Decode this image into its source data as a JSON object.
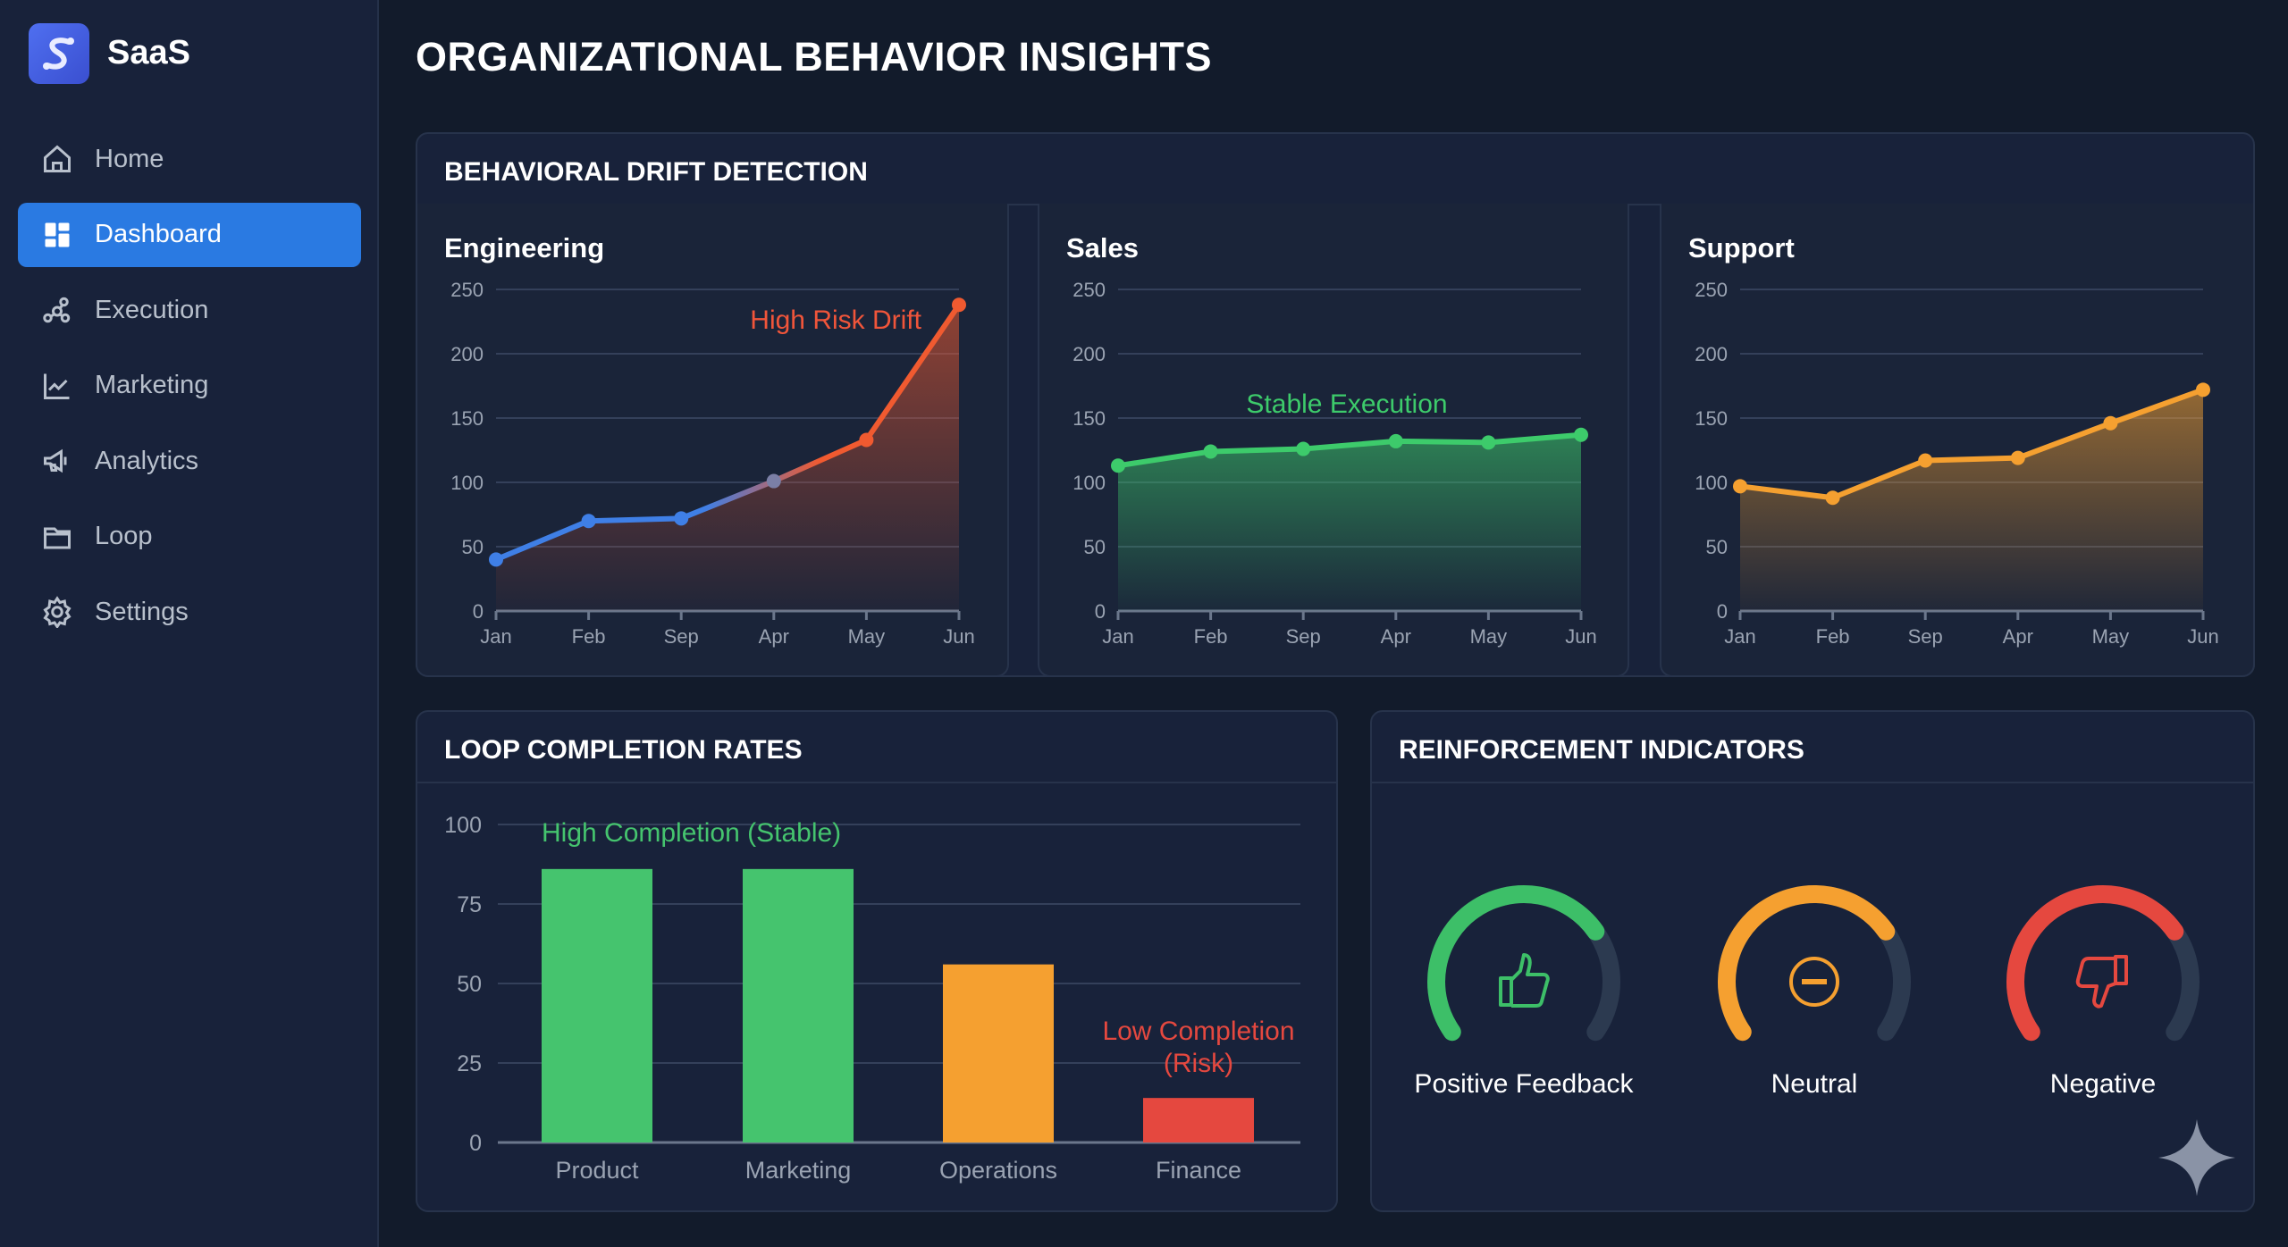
{
  "app": {
    "name": "SaaS",
    "logo_icon": "s-logo-icon"
  },
  "sidebar": {
    "items": [
      {
        "label": "Home",
        "icon": "home-icon",
        "active": false
      },
      {
        "label": "Dashboard",
        "icon": "dashboard-icon",
        "active": true
      },
      {
        "label": "Execution",
        "icon": "nodes-icon",
        "active": false
      },
      {
        "label": "Marketing",
        "icon": "line-chart-icon",
        "active": false
      },
      {
        "label": "Analytics",
        "icon": "megaphone-icon",
        "active": false
      },
      {
        "label": "Loop",
        "icon": "folder-icon",
        "active": false
      },
      {
        "label": "Settings",
        "icon": "gear-icon",
        "active": false
      }
    ]
  },
  "page": {
    "title": "ORGANIZATIONAL BEHAVIOR INSIGHTS"
  },
  "drift": {
    "title": "BEHAVIORAL DRIFT DETECTION"
  },
  "loop": {
    "title": "LOOP COMPLETION RATES"
  },
  "reinforcement": {
    "title": "REINFORCEMENT INDICATORS",
    "gauges": [
      {
        "label": "Positive Feedback",
        "icon": "thumbs-up-icon",
        "color": "#3dbf68",
        "level": 0.72
      },
      {
        "label": "Neutral",
        "icon": "minus-circle-icon",
        "color": "#f5a030",
        "level": 0.72
      },
      {
        "label": "Negative",
        "icon": "thumbs-down-icon",
        "color": "#e5483f",
        "level": 0.72
      }
    ]
  },
  "chart_data": [
    {
      "type": "area",
      "title": "Engineering",
      "categories": [
        "Jan",
        "Feb",
        "Sep",
        "Apr",
        "May",
        "Jun"
      ],
      "values": [
        40,
        70,
        72,
        101,
        133,
        238
      ],
      "ylim": [
        0,
        250
      ],
      "yticks": [
        0,
        50,
        100,
        150,
        200,
        250
      ],
      "grid": true,
      "colors": {
        "start": "#3f7fe6",
        "end": "#f05a30"
      },
      "annotation": {
        "text": "High Risk Drift",
        "color": "#f0553a"
      }
    },
    {
      "type": "area",
      "title": "Sales",
      "categories": [
        "Jan",
        "Feb",
        "Sep",
        "Apr",
        "May",
        "Jun"
      ],
      "values": [
        113,
        124,
        126,
        132,
        131,
        137
      ],
      "ylim": [
        0,
        250
      ],
      "yticks": [
        0,
        50,
        100,
        150,
        200,
        250
      ],
      "grid": true,
      "colors": {
        "start": "#3dcb6b",
        "end": "#3dcb6b"
      },
      "annotation": {
        "text": "Stable Execution",
        "color": "#3dcb6b"
      }
    },
    {
      "type": "area",
      "title": "Support",
      "categories": [
        "Jan",
        "Feb",
        "Sep",
        "Apr",
        "May",
        "Jun"
      ],
      "values": [
        97,
        88,
        117,
        119,
        146,
        172
      ],
      "ylim": [
        0,
        250
      ],
      "yticks": [
        0,
        50,
        100,
        150,
        200,
        250
      ],
      "grid": true,
      "colors": {
        "start": "#f5a030",
        "end": "#f5a030"
      }
    },
    {
      "type": "bar",
      "categories": [
        "Product",
        "Marketing",
        "Operations",
        "Finance"
      ],
      "values": [
        86,
        86,
        56,
        14
      ],
      "colors": [
        "#45c46e",
        "#45c46e",
        "#f5a030",
        "#e5483f"
      ],
      "ylim": [
        0,
        100
      ],
      "yticks": [
        0,
        25,
        50,
        75,
        100
      ],
      "grid": true,
      "annotations": [
        {
          "text": "High Completion (Stable)",
          "color": "#45c46e"
        },
        {
          "text": "Low Completion",
          "color": "#e5483f"
        },
        {
          "text": "(Risk)",
          "color": "#e5483f"
        }
      ]
    }
  ]
}
